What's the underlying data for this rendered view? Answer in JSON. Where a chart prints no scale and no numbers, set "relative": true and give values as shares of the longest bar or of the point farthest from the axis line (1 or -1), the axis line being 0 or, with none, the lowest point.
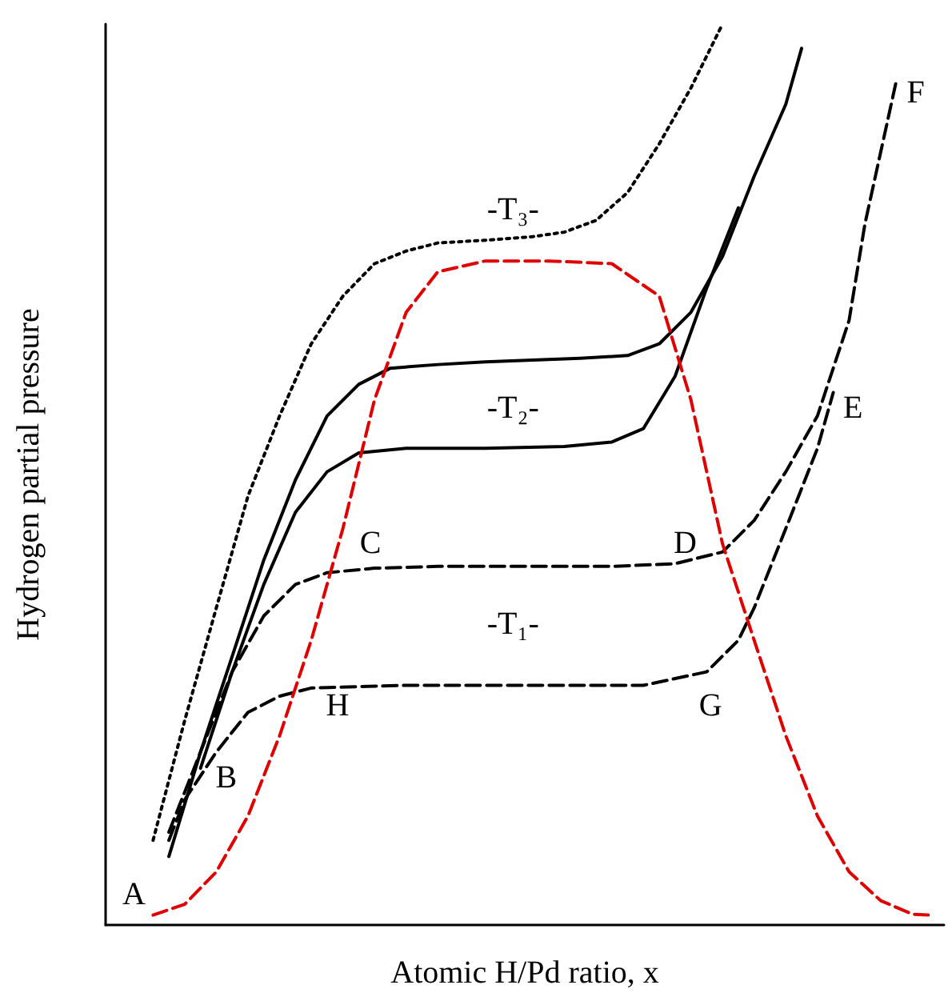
{
  "chart_data": {
    "type": "line",
    "relative": true,
    "xlabel": "Atomic H/Pd ratio, x",
    "ylabel": "Hydrogen partial pressure",
    "marker": "none",
    "grid": false,
    "categories": [
      null,
      null,
      null,
      null,
      null,
      null,
      null,
      null,
      null,
      null,
      null,
      null,
      null,
      null,
      null,
      null,
      null,
      null,
      null,
      null,
      null,
      null,
      null,
      null,
      null,
      null,
      null,
      null,
      null,
      null,
      null,
      null,
      null,
      null,
      null,
      null,
      null,
      null,
      null,
      null,
      null,
      null,
      null,
      null,
      null,
      null,
      null,
      null,
      null,
      null,
      null,
      null,
      null,
      null
    ],
    "series": [
      {
        "color": "#000000",
        "line_style": "dotted",
        "values": [
          null,
          null,
          null,
          0.094,
          null,
          0.227,
          null,
          0.352,
          null,
          0.476,
          null,
          0.565,
          null,
          0.645,
          null,
          0.698,
          null,
          0.734,
          null,
          0.748,
          null,
          0.757,
          null,
          null,
          0.76,
          null,
          null,
          0.764,
          null,
          0.769,
          null,
          0.782,
          null,
          0.813,
          null,
          0.867,
          null,
          0.929,
          null,
          1,
          null,
          null,
          null,
          null,
          null,
          null,
          null,
          null,
          null,
          null,
          null,
          null,
          null,
          null
        ]
      },
      {
        "color": "#000000",
        "line_style": "solid",
        "values": [
          null,
          null,
          null,
          null,
          0.076,
          null,
          0.192,
          null,
          0.298,
          null,
          0.405,
          null,
          0.494,
          null,
          0.565,
          null,
          0.6,
          null,
          0.618,
          null,
          null,
          0.622,
          null,
          null,
          0.625,
          null,
          null,
          0.627,
          null,
          null,
          0.629,
          null,
          null,
          0.632,
          null,
          0.645,
          null,
          0.68,
          null,
          0.742,
          null,
          0.831,
          null,
          0.911,
          0.973,
          null,
          null,
          null,
          null,
          null,
          null,
          null,
          null,
          null
        ]
      },
      {
        "color": "#000000",
        "line_style": "solid",
        "values": [
          null,
          null,
          null,
          null,
          null,
          null,
          0.174,
          null,
          0.281,
          null,
          0.378,
          null,
          0.458,
          null,
          0.503,
          null,
          0.524,
          null,
          null,
          0.529,
          null,
          null,
          null,
          null,
          0.529,
          null,
          null,
          null,
          null,
          0.531,
          null,
          null,
          0.536,
          null,
          0.551,
          null,
          0.609,
          null,
          0.707,
          null,
          0.796,
          null,
          null,
          null,
          null,
          null,
          null,
          null,
          null,
          null,
          null,
          null,
          null,
          null
        ]
      },
      {
        "color": "#000000",
        "line_style": "dashed",
        "values": [
          null,
          null,
          null,
          null,
          0.103,
          null,
          0.192,
          null,
          0.281,
          null,
          0.343,
          null,
          0.378,
          null,
          0.391,
          null,
          null,
          0.396,
          null,
          null,
          null,
          0.398,
          null,
          null,
          null,
          null,
          null,
          0.398,
          null,
          null,
          null,
          null,
          0.398,
          null,
          null,
          null,
          0.401,
          null,
          null,
          0.414,
          null,
          0.449,
          null,
          0.503,
          null,
          0.565,
          null,
          0.671,
          0.778,
          0.858,
          0.938,
          null,
          null,
          null
        ]
      },
      {
        "color": "#000000",
        "line_style": "dashed",
        "values": [
          null,
          null,
          null,
          null,
          0.094,
          0.139,
          null,
          0.192,
          null,
          0.236,
          null,
          0.254,
          null,
          0.263,
          null,
          null,
          null,
          null,
          null,
          0.266,
          null,
          null,
          null,
          null,
          null,
          null,
          null,
          0.266,
          null,
          null,
          null,
          null,
          null,
          null,
          0.266,
          null,
          null,
          null,
          0.281,
          null,
          0.316,
          0.352,
          null,
          0.44,
          null,
          0.529,
          0.591,
          null,
          null,
          null,
          null,
          null,
          null,
          null
        ]
      },
      {
        "color": "#e00000",
        "line_style": "dashed",
        "values": [
          null,
          null,
          null,
          0.011,
          null,
          0.023,
          null,
          0.059,
          null,
          0.121,
          null,
          0.21,
          null,
          0.316,
          null,
          0.44,
          null,
          0.583,
          null,
          0.68,
          null,
          0.725,
          null,
          null,
          0.737,
          null,
          null,
          null,
          0.737,
          null,
          null,
          null,
          0.734,
          null,
          null,
          0.698,
          null,
          0.583,
          null,
          0.423,
          null,
          0.316,
          null,
          0.21,
          null,
          0.121,
          null,
          0.059,
          null,
          0.027,
          null,
          0.012,
          0.011,
          null
        ]
      }
    ],
    "annotations": [
      "A",
      "B",
      "C",
      "D",
      "E",
      "F",
      "G",
      "H",
      "-T₁-",
      "-T₂-",
      "-T₃-"
    ]
  }
}
